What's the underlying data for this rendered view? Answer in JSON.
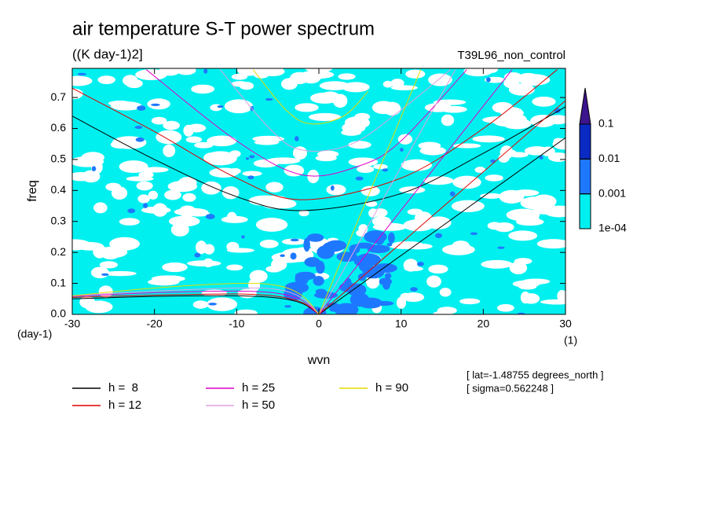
{
  "chart_data": {
    "type": "spectrum",
    "title": "air temperature S-T power spectrum",
    "subtitle": "((K day-1)2]",
    "run_label": "T39L96_non_control",
    "x_label": "wvn",
    "y_label": "freq",
    "x_unit": "(1)",
    "y_unit": "(day-1)",
    "annotations": [
      "[ lat=-1.48755 degrees_north ]",
      "[ sigma=0.562248 ]"
    ],
    "xlim": [
      -30,
      30
    ],
    "xticks": [
      -30,
      -20,
      -10,
      0,
      10,
      20,
      30
    ],
    "ylim": [
      0,
      0.794
    ],
    "yticks": [
      {
        "value": 0,
        "label": "0.0"
      },
      0.1,
      0.2,
      0.3,
      0.4,
      0.5,
      0.6,
      0.7
    ],
    "colorbar": {
      "ticks": [
        {
          "value": 0.0001,
          "label": "1e-04"
        },
        0.001,
        0.01,
        0.1
      ],
      "colors": [
        "#00f0f0",
        "#1e78ff",
        "#0a2ac4",
        "#3c148c"
      ]
    },
    "series": [
      {
        "name": "h =  8",
        "color": "#000000",
        "kelvin": {
          "x": [
            0,
            30
          ],
          "y": [
            0,
            0.57
          ]
        },
        "ig": {
          "x": [
            -30,
            -20,
            -10,
            -2,
            10,
            20,
            30
          ],
          "y": [
            0.64,
            0.5,
            0.38,
            0.335,
            0.39,
            0.52,
            0.67
          ]
        },
        "rossby": {
          "x": [
            -30,
            -20,
            -10,
            -5,
            -2,
            0
          ],
          "y": [
            0.05,
            0.058,
            0.06,
            0.053,
            0.035,
            0
          ]
        }
      },
      {
        "name": "h = 12",
        "color": "#e00000",
        "kelvin": {
          "x": [
            0,
            30
          ],
          "y": [
            0,
            0.69
          ]
        },
        "ig": {
          "x": [
            -30,
            -20,
            -10,
            -2,
            10,
            20,
            29
          ],
          "y": [
            0.73,
            0.59,
            0.44,
            0.37,
            0.44,
            0.6,
            0.79
          ]
        },
        "rossby": {
          "x": [
            -30,
            -20,
            -10,
            -5,
            -2,
            0
          ],
          "y": [
            0.055,
            0.062,
            0.066,
            0.058,
            0.038,
            0
          ]
        }
      },
      {
        "name": "h = 25",
        "color": "#e000c8",
        "kelvin": {
          "x": [
            0,
            23.5
          ],
          "y": [
            0,
            0.79
          ]
        },
        "ig": {
          "x": [
            -21,
            -10,
            -2,
            5,
            10,
            18
          ],
          "y": [
            0.79,
            0.56,
            0.45,
            0.48,
            0.56,
            0.79
          ]
        },
        "rossby": {
          "x": [
            -30,
            -20,
            -10,
            -5,
            -2,
            0
          ],
          "y": [
            0.058,
            0.07,
            0.075,
            0.068,
            0.045,
            0
          ]
        }
      },
      {
        "name": "h = 50",
        "color": "#e0a0e0",
        "kelvin": {
          "x": [
            0,
            16.6
          ],
          "y": [
            0,
            0.79
          ]
        },
        "ig": {
          "x": [
            -12,
            -6,
            -2,
            4,
            10,
            16
          ],
          "y": [
            0.79,
            0.6,
            0.53,
            0.55,
            0.66,
            0.79
          ]
        },
        "rossby": {
          "x": [
            -30,
            -20,
            -10,
            -5,
            -2,
            0
          ],
          "y": [
            0.06,
            0.075,
            0.085,
            0.08,
            0.052,
            0
          ]
        }
      },
      {
        "name": "h = 90",
        "color": "#e6dc00",
        "kelvin": {
          "x": [
            0,
            12.4
          ],
          "y": [
            0,
            0.79
          ]
        },
        "ig": {
          "x": [
            -8,
            -4,
            -1,
            3,
            6
          ],
          "y": [
            0.79,
            0.66,
            0.615,
            0.64,
            0.72
          ]
        },
        "rossby": {
          "x": [
            -30,
            -20,
            -10,
            -5,
            -2,
            0
          ],
          "y": [
            0.06,
            0.085,
            0.1,
            0.093,
            0.06,
            0
          ]
        }
      }
    ]
  }
}
